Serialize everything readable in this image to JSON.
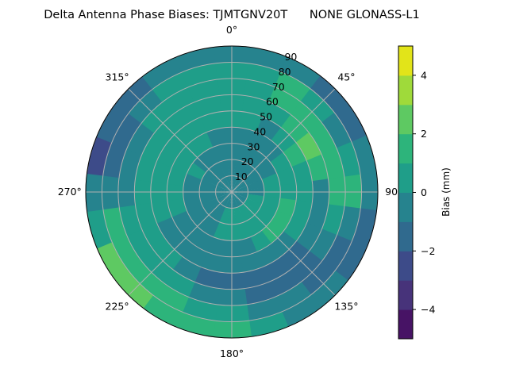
{
  "chart_data": {
    "type": "heatmap",
    "projection": "polar",
    "title": "Delta Antenna Phase Biases: TJMTGNV20T      NONE GLONASS-L1",
    "theta_direction": "clockwise",
    "theta_zero": "top",
    "theta_tick_labels": [
      "0°",
      "45°",
      "90°",
      "135°",
      "180°",
      "225°",
      "270°",
      "315°"
    ],
    "theta_ticks": [
      0,
      45,
      90,
      135,
      180,
      225,
      270,
      315
    ],
    "r_tick_labels": [
      "10",
      "20",
      "30",
      "40",
      "50",
      "60",
      "70",
      "80",
      "90"
    ],
    "r_ticks": [
      10,
      20,
      30,
      40,
      50,
      60,
      70,
      80,
      90
    ],
    "r_range": [
      0,
      90
    ],
    "grid": true,
    "colorbar": {
      "label": "Bias (mm)",
      "levels": [
        -5,
        -4,
        -3,
        -2,
        -1,
        0,
        1,
        2,
        3,
        4,
        5
      ],
      "colors": [
        "#471365",
        "#47337a",
        "#3d4b89",
        "#306a8e",
        "#26838e",
        "#1f9e89",
        "#2db47b",
        "#5ec962",
        "#9fda3a",
        "#e2e419"
      ],
      "tick_values": [
        -4,
        -2,
        0,
        2,
        4
      ],
      "tick_labels": [
        "−4",
        "−2",
        "0",
        "2",
        "4"
      ]
    },
    "azimuths": [
      0,
      15,
      30,
      45,
      60,
      75,
      90,
      105,
      120,
      135,
      150,
      165,
      180,
      195,
      210,
      225,
      240,
      255,
      270,
      285,
      300,
      315,
      330,
      345
    ],
    "zenith_centers": [
      5,
      15,
      25,
      35,
      45,
      55,
      65,
      75,
      85
    ],
    "bias_grid": [
      [
        -0.5,
        -0.5,
        -0.5,
        -0.5,
        0.5,
        0.5,
        0.5,
        0.5,
        -0.5
      ],
      [
        -0.5,
        -0.5,
        -0.5,
        -0.5,
        0.5,
        0.5,
        0.5,
        0.5,
        -0.5
      ],
      [
        -0.5,
        -0.5,
        -0.5,
        -0.5,
        -0.5,
        0.5,
        1.5,
        1.5,
        -0.5
      ],
      [
        -0.5,
        -0.5,
        -0.5,
        -0.5,
        0.5,
        1.5,
        1.5,
        0.5,
        -1.5
      ],
      [
        -0.5,
        -0.5,
        -0.5,
        0.5,
        1.5,
        2.5,
        1.5,
        -0.5,
        -1.5
      ],
      [
        -0.5,
        -0.5,
        0.5,
        0.5,
        0.5,
        1.5,
        1.5,
        0.5,
        -0.5
      ],
      [
        -0.5,
        -0.5,
        0.5,
        0.5,
        0.5,
        -0.5,
        1.5,
        1.5,
        -0.5
      ],
      [
        -0.5,
        0.5,
        0.5,
        1.5,
        0.5,
        -0.5,
        0.5,
        -0.5,
        -1.5
      ],
      [
        -0.5,
        0.5,
        0.5,
        1.5,
        0.5,
        -0.5,
        -0.5,
        -1.5,
        -1.5
      ],
      [
        -0.5,
        0.5,
        0.5,
        1.5,
        -0.5,
        -1.5,
        -1.5,
        -1.5,
        -0.5
      ],
      [
        -0.5,
        0.5,
        0.5,
        0.5,
        -0.5,
        -1.5,
        -1.5,
        -0.5,
        -0.5
      ],
      [
        -0.5,
        0.5,
        0.5,
        -0.5,
        -0.5,
        -1.5,
        -1.5,
        -0.5,
        0.5
      ],
      [
        -0.5,
        0.5,
        0.5,
        -0.5,
        -0.5,
        -1.5,
        -0.5,
        0.5,
        1.5
      ],
      [
        -0.5,
        0.5,
        0.5,
        -0.5,
        -0.5,
        -1.5,
        -0.5,
        0.5,
        1.5
      ],
      [
        -0.5,
        -0.5,
        -0.5,
        -0.5,
        -0.5,
        -0.5,
        0.5,
        1.5,
        1.5
      ],
      [
        -0.5,
        -0.5,
        -0.5,
        -0.5,
        -0.5,
        0.5,
        0.5,
        1.5,
        2.5
      ],
      [
        -0.5,
        -0.5,
        -0.5,
        -0.5,
        -0.5,
        0.5,
        0.5,
        1.5,
        2.5
      ],
      [
        -0.5,
        -0.5,
        -0.5,
        0.5,
        0.5,
        0.5,
        0.5,
        1.5,
        0.5
      ],
      [
        -0.5,
        -0.5,
        -0.5,
        0.5,
        0.5,
        0.5,
        -0.5,
        -0.5,
        -0.5
      ],
      [
        -0.5,
        -0.5,
        -0.5,
        0.5,
        0.5,
        0.5,
        -0.5,
        -1.5,
        -2.5
      ],
      [
        -0.5,
        -0.5,
        0.5,
        0.5,
        0.5,
        0.5,
        -0.5,
        -1.5,
        -1.5
      ],
      [
        -0.5,
        -0.5,
        -0.5,
        0.5,
        0.5,
        0.5,
        0.5,
        -0.5,
        -1.5
      ],
      [
        -0.5,
        -0.5,
        -0.5,
        0.5,
        0.5,
        0.5,
        0.5,
        0.5,
        -0.5
      ],
      [
        -0.5,
        -0.5,
        -0.5,
        -0.5,
        0.5,
        0.5,
        0.5,
        0.5,
        -0.5
      ]
    ]
  }
}
